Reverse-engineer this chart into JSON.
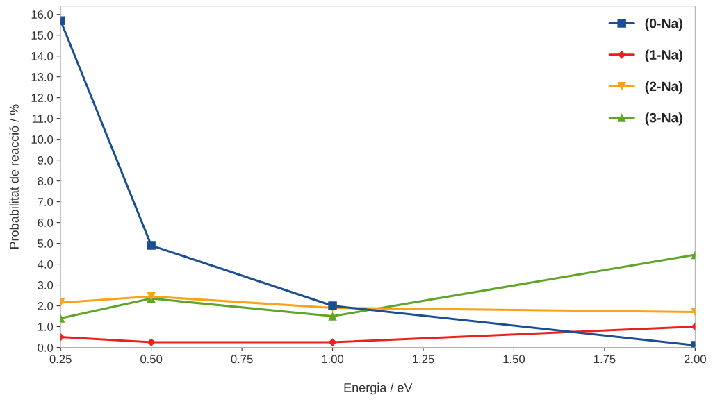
{
  "chart_data": {
    "type": "line",
    "xlabel": "Energia / eV",
    "ylabel": "Probabilitat de reacció / %",
    "x": [
      0.25,
      0.5,
      1.0,
      2.0
    ],
    "series": [
      {
        "name": "(0-Na)",
        "color": "#1c4f91",
        "marker": "square",
        "values": [
          15.7,
          4.9,
          2.0,
          0.1
        ]
      },
      {
        "name": "(1-Na)",
        "color": "#e8231d",
        "marker": "diamond",
        "values": [
          0.5,
          0.25,
          0.25,
          1.0
        ]
      },
      {
        "name": "(2-Na)",
        "color": "#f9a21b",
        "marker": "triangle_down",
        "values": [
          2.15,
          2.45,
          1.9,
          1.7
        ]
      },
      {
        "name": "(3-Na)",
        "color": "#5ea52a",
        "marker": "triangle",
        "values": [
          1.4,
          2.35,
          1.5,
          4.45
        ]
      }
    ],
    "xlim": [
      0.25,
      2.0
    ],
    "xticks": [
      {
        "value": 0.25,
        "label": "0.25"
      },
      {
        "value": 0.5,
        "label": "0.50"
      },
      {
        "value": 0.75,
        "label": "0.75"
      },
      {
        "value": 1.0,
        "label": "1.00"
      },
      {
        "value": 1.25,
        "label": "1.25"
      },
      {
        "value": 1.5,
        "label": "1.50"
      },
      {
        "value": 1.75,
        "label": "1.75"
      },
      {
        "value": 2.0,
        "label": "2.00"
      }
    ],
    "ylim": [
      0,
      16.4
    ],
    "yticks": [
      {
        "value": 0,
        "label": "0.0"
      },
      {
        "value": 1,
        "label": "1.0"
      },
      {
        "value": 2,
        "label": "2.0"
      },
      {
        "value": 3,
        "label": "3.0"
      },
      {
        "value": 4,
        "label": "4.0"
      },
      {
        "value": 5,
        "label": "5.0"
      },
      {
        "value": 6,
        "label": "6.0"
      },
      {
        "value": 7,
        "label": "7.0"
      },
      {
        "value": 8,
        "label": "8.0"
      },
      {
        "value": 9,
        "label": "9.0"
      },
      {
        "value": 10,
        "label": "10.0"
      },
      {
        "value": 11,
        "label": "11.0"
      },
      {
        "value": 12,
        "label": "12.0"
      },
      {
        "value": 13,
        "label": "13.0"
      },
      {
        "value": 14,
        "label": "14.0"
      },
      {
        "value": 15,
        "label": "15.0"
      },
      {
        "value": 16,
        "label": "16.0"
      }
    ],
    "grid": false,
    "legend": "top right",
    "line_style": "solid"
  }
}
